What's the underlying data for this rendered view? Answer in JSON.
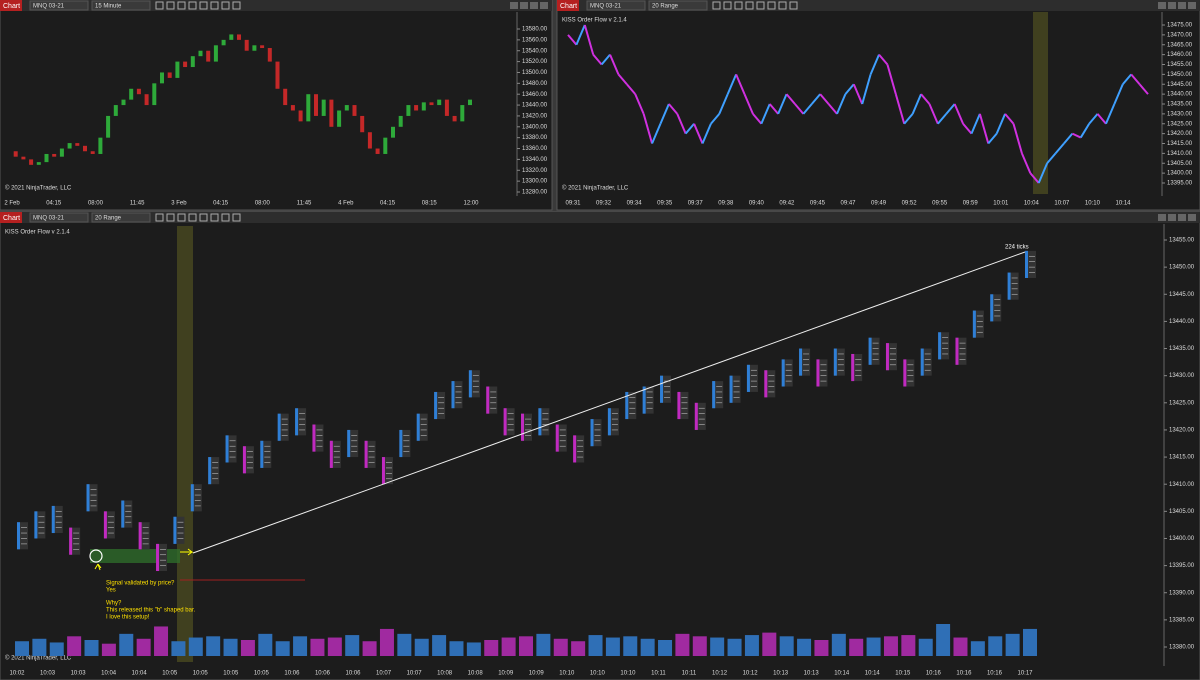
{
  "windows": [
    {
      "tab": "Chart",
      "instrument": "MNQ 03-21",
      "interval": "15 Minute",
      "copyright": "© 2021 NinjaTrader, LLC",
      "price_ticks": [
        {
          "value": 13580,
          "label": "13580.00"
        },
        {
          "value": 13560,
          "label": "13560.00"
        },
        {
          "value": 13540,
          "label": "13540.00"
        },
        {
          "value": 13520,
          "label": "13520.00"
        },
        {
          "value": 13500,
          "label": "13500.00"
        },
        {
          "value": 13480,
          "label": "13480.00"
        },
        {
          "value": 13460,
          "label": "13460.00"
        },
        {
          "value": 13440,
          "label": "13440.00"
        },
        {
          "value": 13420,
          "label": "13420.00"
        },
        {
          "value": 13400,
          "label": "13400.00"
        },
        {
          "value": 13380,
          "label": "13380.00"
        },
        {
          "value": 13360,
          "label": "13360.00"
        },
        {
          "value": 13340,
          "label": "13340.00"
        },
        {
          "value": 13320,
          "label": "13320.00"
        },
        {
          "value": 13300,
          "label": "13300.00"
        },
        {
          "value": 13280,
          "label": "13280.00"
        }
      ],
      "time_labels": [
        "2 Feb",
        "04:15",
        "08:00",
        "11:45",
        "3 Feb",
        "04:15",
        "08:00",
        "11:45",
        "4 Feb",
        "04:15",
        "08:15",
        "12:00"
      ],
      "closes": [
        13355,
        13345,
        13340,
        13330,
        13335,
        13350,
        13345,
        13360,
        13370,
        13365,
        13355,
        13350,
        13380,
        13420,
        13440,
        13450,
        13470,
        13460,
        13440,
        13480,
        13500,
        13490,
        13520,
        13510,
        13530,
        13540,
        13520,
        13550,
        13560,
        13570,
        13560,
        13540,
        13550,
        13545,
        13520,
        13470,
        13440,
        13430,
        13410,
        13460,
        13420,
        13450,
        13400,
        13430,
        13440,
        13420,
        13390,
        13360,
        13350,
        13380,
        13400,
        13420,
        13440,
        13430,
        13445,
        13440,
        13450,
        13420,
        13410,
        13440,
        13450
      ]
    },
    {
      "tab": "Chart",
      "instrument": "MNQ 03-21",
      "interval": "20 Range",
      "indicator": "KISS Order Flow v 2.1.4",
      "copyright": "© 2021 NinjaTrader, LLC",
      "price_ticks": [
        {
          "value": 13475,
          "label": "13475.00"
        },
        {
          "value": 13470,
          "label": "13470.00"
        },
        {
          "value": 13465,
          "label": "13465.00"
        },
        {
          "value": 13460,
          "label": "13460.00"
        },
        {
          "value": 13455,
          "label": "13455.00"
        },
        {
          "value": 13450,
          "label": "13450.00"
        },
        {
          "value": 13445,
          "label": "13445.00"
        },
        {
          "value": 13440,
          "label": "13440.00"
        },
        {
          "value": 13435,
          "label": "13435.00"
        },
        {
          "value": 13430,
          "label": "13430.00"
        },
        {
          "value": 13425,
          "label": "13425.00"
        },
        {
          "value": 13420,
          "label": "13420.00"
        },
        {
          "value": 13415,
          "label": "13415.00"
        },
        {
          "value": 13410,
          "label": "13410.00"
        },
        {
          "value": 13405,
          "label": "13405.00"
        },
        {
          "value": 13400,
          "label": "13400.00"
        },
        {
          "value": 13395,
          "label": "13395.00"
        }
      ],
      "time_labels": [
        "09:31",
        "09:32",
        "09:34",
        "09:35",
        "09:37",
        "09:38",
        "09:40",
        "09:42",
        "09:45",
        "09:47",
        "09:49",
        "09:52",
        "09:55",
        "09:59",
        "10:01",
        "10:04",
        "10:07",
        "10:10",
        "10:14"
      ],
      "closes": [
        13470,
        13465,
        13475,
        13460,
        13455,
        13460,
        13450,
        13445,
        13440,
        13430,
        13415,
        13425,
        13435,
        13430,
        13420,
        13425,
        13415,
        13425,
        13430,
        13440,
        13450,
        13440,
        13430,
        13425,
        13435,
        13430,
        13440,
        13435,
        13430,
        13435,
        13440,
        13435,
        13430,
        13440,
        13445,
        13435,
        13450,
        13460,
        13455,
        13440,
        13425,
        13430,
        13440,
        13435,
        13425,
        13430,
        13435,
        13425,
        13420,
        13430,
        13415,
        13420,
        13430,
        13425,
        13410,
        13400,
        13395,
        13405,
        13410,
        13415,
        13420,
        13418,
        13425,
        13430,
        13425,
        13435,
        13445,
        13450,
        13445,
        13440
      ]
    },
    {
      "tab": "Chart",
      "instrument": "MNQ 03-21",
      "interval": "20 Range",
      "indicator": "KISS Order Flow v 2.1.4",
      "copyright": "© 2021 NinjaTrader, LLC",
      "price_ticks": [
        {
          "value": 13455,
          "label": "13455.00"
        },
        {
          "value": 13450,
          "label": "13450.00"
        },
        {
          "value": 13445,
          "label": "13445.00"
        },
        {
          "value": 13440,
          "label": "13440.00"
        },
        {
          "value": 13435,
          "label": "13435.00"
        },
        {
          "value": 13430,
          "label": "13430.00"
        },
        {
          "value": 13425,
          "label": "13425.00"
        },
        {
          "value": 13420,
          "label": "13420.00"
        },
        {
          "value": 13415,
          "label": "13415.00"
        },
        {
          "value": 13410,
          "label": "13410.00"
        },
        {
          "value": 13405,
          "label": "13405.00"
        },
        {
          "value": 13400,
          "label": "13400.00"
        },
        {
          "value": 13395,
          "label": "13395.00"
        },
        {
          "value": 13390,
          "label": "13390.00"
        },
        {
          "value": 13385,
          "label": "13385.00"
        },
        {
          "value": 13380,
          "label": "13380.00"
        }
      ],
      "time_labels": [
        "10:02",
        "10:03",
        "10:03",
        "10:04",
        "10:04",
        "10:05",
        "10:05",
        "10:05",
        "10:05",
        "10:06",
        "10:06",
        "10:06",
        "10:07",
        "10:07",
        "10:08",
        "10:08",
        "10:09",
        "10:09",
        "10:10",
        "10:10",
        "10:10",
        "10:11",
        "10:11",
        "10:12",
        "10:12",
        "10:13",
        "10:13",
        "10:14",
        "10:14",
        "10:15",
        "10:16",
        "10:16",
        "10:16",
        "10:17"
      ],
      "bars": {
        "lows": [
          13398,
          13400,
          13401,
          13397,
          13405,
          13400,
          13402,
          13398,
          13394,
          13399,
          13405,
          13410,
          13414,
          13412,
          13413,
          13418,
          13419,
          13416,
          13413,
          13415,
          13413,
          13410,
          13415,
          13418,
          13422,
          13424,
          13426,
          13423,
          13419,
          13418,
          13419,
          13416,
          13414,
          13417,
          13419,
          13422,
          13423,
          13425,
          13422,
          13420,
          13424,
          13425,
          13427,
          13426,
          13428,
          13430,
          13428,
          13430,
          13429,
          13432,
          13431,
          13428,
          13430,
          13433,
          13432,
          13437,
          13440,
          13444,
          13448
        ],
        "highs": [
          13403,
          13405,
          13406,
          13402,
          13410,
          13405,
          13407,
          13403,
          13399,
          13404,
          13410,
          13415,
          13419,
          13417,
          13418,
          13423,
          13424,
          13421,
          13418,
          13420,
          13418,
          13415,
          13420,
          13423,
          13427,
          13429,
          13431,
          13428,
          13424,
          13423,
          13424,
          13421,
          13419,
          13422,
          13424,
          13427,
          13428,
          13430,
          13427,
          13425,
          13429,
          13430,
          13432,
          13431,
          13433,
          13435,
          13433,
          13435,
          13434,
          13437,
          13436,
          13433,
          13435,
          13438,
          13437,
          13442,
          13445,
          13449,
          13453
        ]
      },
      "volume": [
        60,
        70,
        55,
        80,
        65,
        50,
        90,
        70,
        120,
        60,
        75,
        80,
        70,
        65,
        90,
        60,
        80,
        70,
        75,
        85,
        60,
        110,
        90,
        70,
        85,
        60,
        55,
        65,
        75,
        80,
        90,
        70,
        60,
        85,
        75,
        80,
        70,
        65,
        90,
        80,
        75,
        70,
        85,
        95,
        80,
        70,
        65,
        90,
        70,
        75,
        80,
        85,
        70,
        130,
        75,
        60,
        80,
        90,
        110
      ],
      "ticks_label": "224 ticks",
      "note": [
        "Signal validated by price?",
        "Yes",
        "Why?",
        "This released this \"b\" shaped bar.",
        "I love this setup!"
      ]
    }
  ]
}
